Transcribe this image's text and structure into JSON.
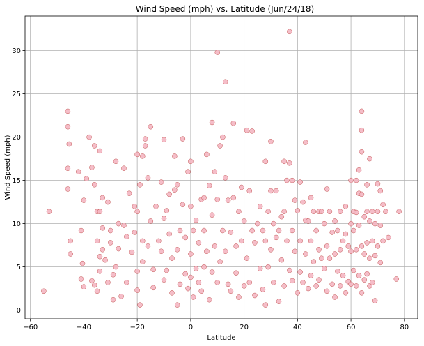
{
  "chart_data": {
    "type": "scatter",
    "title": "Wind Speed (mph) vs. Latitude (Jun/24/18)",
    "xlabel": "Latitude",
    "ylabel": "Wind Speed (mph)",
    "xlim": [
      -62,
      85
    ],
    "ylim": [
      -1,
      34
    ],
    "grid": true,
    "xticks": [
      -60,
      -40,
      -20,
      0,
      20,
      40,
      60,
      80
    ],
    "yticks": [
      0,
      5,
      10,
      15,
      20,
      25,
      30
    ],
    "marker_fill": "#f4b6c2",
    "marker_edge": "#c0504d",
    "points": [
      [
        -55,
        2.2
      ],
      [
        -53,
        11.4
      ],
      [
        -46,
        23.0
      ],
      [
        -46,
        21.2
      ],
      [
        -46,
        16.4
      ],
      [
        -46,
        14.0
      ],
      [
        -45.5,
        19.2
      ],
      [
        -45,
        8.0
      ],
      [
        -45,
        6.5
      ],
      [
        -42,
        16.0
      ],
      [
        -41,
        9.2
      ],
      [
        -41,
        3.6
      ],
      [
        -40.5,
        5.4
      ],
      [
        -40,
        12.7
      ],
      [
        -40,
        2.7
      ],
      [
        -39,
        15.2
      ],
      [
        -38,
        20.0
      ],
      [
        -37,
        16.5
      ],
      [
        -36,
        19.0
      ],
      [
        -36,
        14.5
      ],
      [
        -35,
        11.4
      ],
      [
        -35,
        8.0
      ],
      [
        -34,
        18.4
      ],
      [
        -34,
        11.4
      ],
      [
        -33,
        13.0
      ],
      [
        -33,
        9.5
      ],
      [
        -37,
        3.4
      ],
      [
        -36,
        2.9
      ],
      [
        -35,
        2.2
      ],
      [
        -34,
        4.5
      ],
      [
        -34,
        6.2
      ],
      [
        -33,
        7.0
      ],
      [
        -32,
        5.8
      ],
      [
        -31,
        3.2
      ],
      [
        -31,
        12.5
      ],
      [
        -30,
        9.2
      ],
      [
        -30,
        7.8
      ],
      [
        -29,
        4.1
      ],
      [
        -29,
        1.2
      ],
      [
        -28,
        17.2
      ],
      [
        -28,
        5.0
      ],
      [
        -27,
        10.0
      ],
      [
        -27,
        7.1
      ],
      [
        -26,
        1.6
      ],
      [
        -25,
        16.4
      ],
      [
        -25,
        9.8
      ],
      [
        -24,
        8.5
      ],
      [
        -24,
        3.2
      ],
      [
        -23,
        13.5
      ],
      [
        -22,
        6.7
      ],
      [
        -21,
        12.0
      ],
      [
        -21,
        9.0
      ],
      [
        -20,
        18.0
      ],
      [
        -20,
        11.4
      ],
      [
        -20,
        4.5
      ],
      [
        -20,
        2.3
      ],
      [
        -19,
        14.5
      ],
      [
        -19,
        0.6
      ],
      [
        -18,
        17.8
      ],
      [
        -18,
        8.0
      ],
      [
        -18,
        5.6
      ],
      [
        -17,
        19.8
      ],
      [
        -17,
        19.0
      ],
      [
        -16,
        15.3
      ],
      [
        -16,
        7.4
      ],
      [
        -15,
        21.2
      ],
      [
        -15,
        10.3
      ],
      [
        -14,
        4.7
      ],
      [
        -14,
        2.6
      ],
      [
        -13,
        12.0
      ],
      [
        -12,
        8.0
      ],
      [
        -11,
        14.8
      ],
      [
        -11,
        6.8
      ],
      [
        -10,
        19.7
      ],
      [
        -10,
        10.6
      ],
      [
        -10,
        3.5
      ],
      [
        -9,
        11.5
      ],
      [
        -9,
        4.6
      ],
      [
        -8,
        13.4
      ],
      [
        -8,
        8.8
      ],
      [
        -7,
        6.0
      ],
      [
        -7,
        2.0
      ],
      [
        -6,
        17.8
      ],
      [
        -6,
        13.9
      ],
      [
        -5,
        14.5
      ],
      [
        -5,
        7.0
      ],
      [
        -5,
        0.6
      ],
      [
        -4,
        9.2
      ],
      [
        -4,
        3.0
      ],
      [
        -3,
        12.2
      ],
      [
        -3,
        19.8
      ],
      [
        -2,
        8.4
      ],
      [
        -2,
        4.2
      ],
      [
        -1,
        16.0
      ],
      [
        -1,
        2.5
      ],
      [
        0,
        17.2
      ],
      [
        0,
        12.0
      ],
      [
        0,
        6.5
      ],
      [
        0,
        3.8
      ],
      [
        1,
        9.2
      ],
      [
        1,
        1.5
      ],
      [
        2,
        4.8
      ],
      [
        2,
        10.4
      ],
      [
        3,
        7.8
      ],
      [
        3,
        3.2
      ],
      [
        4,
        12.8
      ],
      [
        4,
        2.2
      ],
      [
        5,
        13.0
      ],
      [
        5,
        9.2
      ],
      [
        5,
        5.0
      ],
      [
        6,
        18.0
      ],
      [
        6,
        6.8
      ],
      [
        7,
        14.4
      ],
      [
        7,
        1.2
      ],
      [
        8,
        21.7
      ],
      [
        8,
        11.0
      ],
      [
        8,
        4.4
      ],
      [
        9,
        16.0
      ],
      [
        9,
        7.4
      ],
      [
        10,
        29.8
      ],
      [
        10,
        12.8
      ],
      [
        10,
        3.2
      ],
      [
        11,
        19.0
      ],
      [
        11,
        5.6
      ],
      [
        12,
        20.0
      ],
      [
        12,
        9.2
      ],
      [
        13,
        26.4
      ],
      [
        13,
        15.3
      ],
      [
        13,
        6.8
      ],
      [
        14,
        12.7
      ],
      [
        14,
        3.0
      ],
      [
        15,
        9.0
      ],
      [
        15,
        2.2
      ],
      [
        16,
        21.6
      ],
      [
        16,
        13.0
      ],
      [
        17,
        7.4
      ],
      [
        17,
        4.3
      ],
      [
        18,
        11.4
      ],
      [
        18,
        1.5
      ],
      [
        19,
        14.2
      ],
      [
        19,
        8.0
      ],
      [
        20,
        10.3
      ],
      [
        20,
        2.8
      ],
      [
        21,
        20.8
      ],
      [
        21,
        6.0
      ],
      [
        22,
        13.8
      ],
      [
        22,
        3.2
      ],
      [
        23,
        20.7
      ],
      [
        23,
        9.2
      ],
      [
        24,
        7.8
      ],
      [
        24,
        1.7
      ],
      [
        25,
        10.0
      ],
      [
        26,
        12.0
      ],
      [
        26,
        4.8
      ],
      [
        27,
        9.2
      ],
      [
        27,
        2.4
      ],
      [
        28,
        17.2
      ],
      [
        28,
        8.0
      ],
      [
        28,
        0.6
      ],
      [
        29,
        11.4
      ],
      [
        29,
        5.0
      ],
      [
        30,
        19.5
      ],
      [
        30,
        13.8
      ],
      [
        30,
        7.0
      ],
      [
        31,
        10.0
      ],
      [
        31,
        3.2
      ],
      [
        32,
        13.8
      ],
      [
        32,
        8.4
      ],
      [
        33,
        9.2
      ],
      [
        33,
        1.0
      ],
      [
        34,
        10.8
      ],
      [
        34,
        5.8
      ],
      [
        35,
        17.2
      ],
      [
        35,
        11.4
      ],
      [
        35,
        2.8
      ],
      [
        36,
        15.0
      ],
      [
        36,
        8.0
      ],
      [
        37,
        32.2
      ],
      [
        37,
        17.0
      ],
      [
        37,
        4.6
      ],
      [
        38,
        15.0
      ],
      [
        38,
        9.2
      ],
      [
        38,
        3.4
      ],
      [
        39,
        12.7
      ],
      [
        39,
        6.8
      ],
      [
        40,
        11.5
      ],
      [
        40,
        2.0
      ],
      [
        41,
        14.8
      ],
      [
        41,
        8.0
      ],
      [
        41,
        4.4
      ],
      [
        42,
        12.5
      ],
      [
        42,
        3.2
      ],
      [
        43,
        19.4
      ],
      [
        43,
        10.4
      ],
      [
        43,
        6.5
      ],
      [
        44,
        10.3
      ],
      [
        44,
        2.5
      ],
      [
        45,
        13.0
      ],
      [
        45,
        8.0
      ],
      [
        45,
        4.0
      ],
      [
        46,
        11.4
      ],
      [
        46,
        5.6
      ],
      [
        47,
        9.2
      ],
      [
        47,
        2.8
      ],
      [
        48,
        11.4
      ],
      [
        48,
        7.0
      ],
      [
        48,
        3.5
      ],
      [
        49,
        11.4
      ],
      [
        49,
        6.0
      ],
      [
        50,
        10.0
      ],
      [
        50,
        4.8
      ],
      [
        51,
        14.0
      ],
      [
        51,
        7.4
      ],
      [
        51,
        2.2
      ],
      [
        52,
        11.4
      ],
      [
        52,
        6.0
      ],
      [
        53,
        9.0
      ],
      [
        53,
        3.0
      ],
      [
        54,
        10.3
      ],
      [
        54,
        6.5
      ],
      [
        54,
        1.5
      ],
      [
        55,
        9.2
      ],
      [
        55,
        4.5
      ],
      [
        56,
        11.4
      ],
      [
        56,
        7.0
      ],
      [
        56,
        2.8
      ],
      [
        57,
        8.0
      ],
      [
        57,
        4.0
      ],
      [
        58,
        12.0
      ],
      [
        58,
        8.8
      ],
      [
        58,
        2.0
      ],
      [
        59,
        7.4
      ],
      [
        59,
        3.3
      ],
      [
        60,
        15.0
      ],
      [
        60,
        10.0
      ],
      [
        60,
        6.8
      ],
      [
        60,
        3.0
      ],
      [
        61,
        11.4
      ],
      [
        61,
        9.2
      ],
      [
        61,
        4.6
      ],
      [
        62,
        15.0
      ],
      [
        62,
        11.3
      ],
      [
        62,
        7.0
      ],
      [
        62,
        2.8
      ],
      [
        63,
        16.2
      ],
      [
        63,
        13.5
      ],
      [
        63,
        9.8
      ],
      [
        63,
        4.0
      ],
      [
        64,
        23.0
      ],
      [
        64,
        20.8
      ],
      [
        64,
        18.3
      ],
      [
        64,
        13.4
      ],
      [
        64,
        7.4
      ],
      [
        64,
        2.0
      ],
      [
        65,
        10.8
      ],
      [
        65,
        6.5
      ],
      [
        65,
        3.5
      ],
      [
        66,
        14.5
      ],
      [
        66,
        11.4
      ],
      [
        66,
        7.8
      ],
      [
        66,
        4.2
      ],
      [
        67,
        17.5
      ],
      [
        67,
        10.3
      ],
      [
        67,
        6.0
      ],
      [
        67,
        2.8
      ],
      [
        68,
        11.4
      ],
      [
        68,
        8.0
      ],
      [
        68,
        3.2
      ],
      [
        69,
        10.0
      ],
      [
        69,
        6.3
      ],
      [
        69,
        1.1
      ],
      [
        70,
        14.6
      ],
      [
        70,
        11.4
      ],
      [
        70,
        7.4
      ],
      [
        71,
        13.8
      ],
      [
        71,
        9.8
      ],
      [
        71,
        5.5
      ],
      [
        72,
        12.2
      ],
      [
        72,
        8.0
      ],
      [
        73,
        11.4
      ],
      [
        74,
        8.4
      ],
      [
        77,
        3.6
      ],
      [
        78,
        11.4
      ]
    ]
  }
}
